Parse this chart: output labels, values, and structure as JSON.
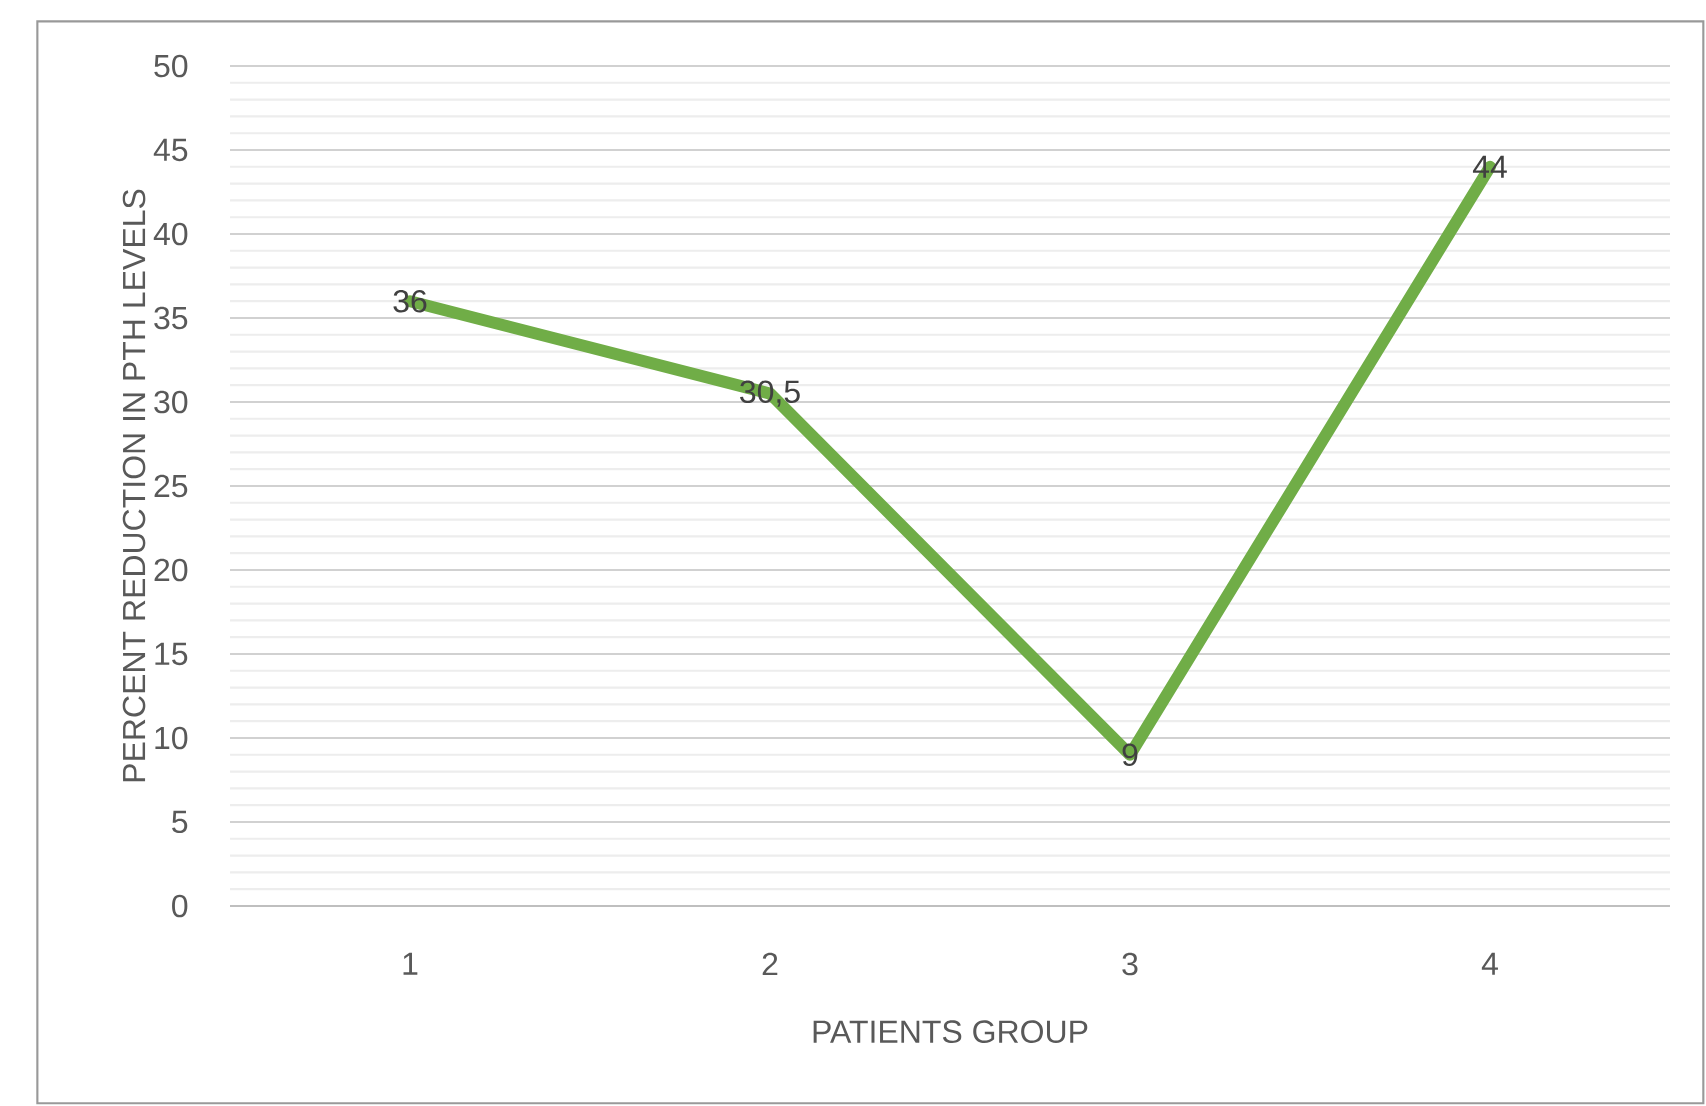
{
  "chart_data": {
    "type": "line",
    "xlabel": "PATIENTS GROUP",
    "ylabel": "PERCENT REDUCTION IN PTH LEVELS",
    "categories": [
      "1",
      "2",
      "3",
      "4"
    ],
    "series": [
      {
        "color": "#70ad47",
        "values": [
          36,
          30.5,
          9,
          44
        ],
        "value_labels": [
          "36",
          "30,5",
          "9",
          "44"
        ]
      }
    ],
    "ylim": [
      0,
      50
    ],
    "yticks": [
      0,
      5,
      10,
      15,
      20,
      25,
      30,
      35,
      40,
      45,
      50
    ],
    "grid": "y",
    "legend": false,
    "marker": "none",
    "line_style": "solid"
  }
}
